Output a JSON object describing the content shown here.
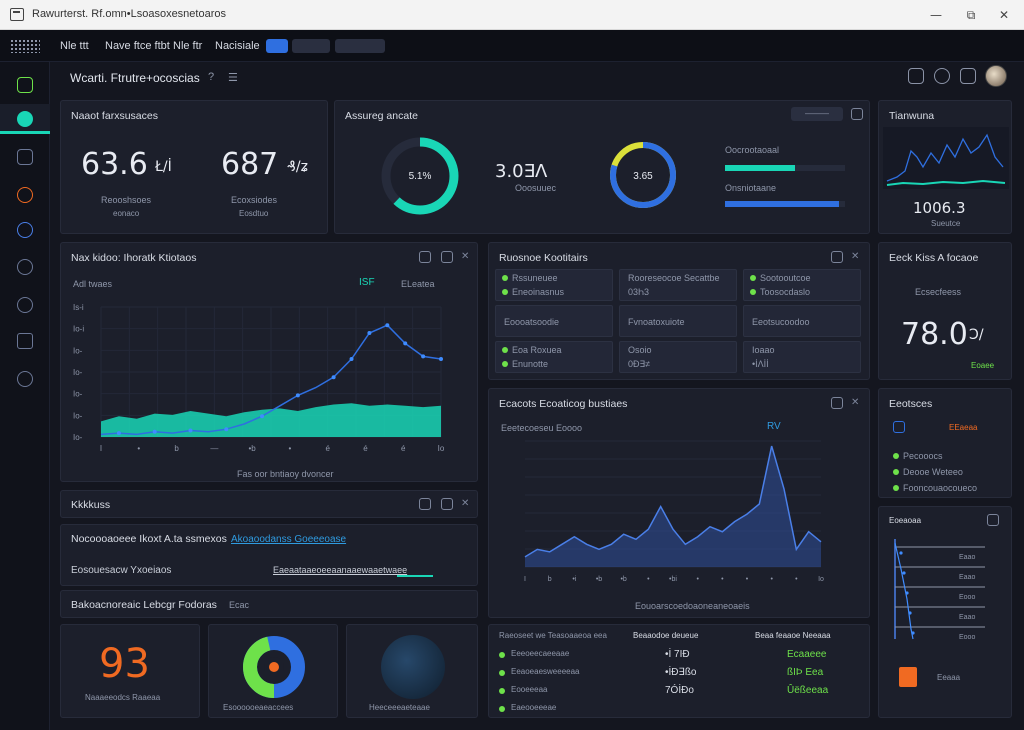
{
  "window": {
    "title": "Rawurterst. Rf.omn•Lsoasoxesnetoaros",
    "minimize": "—",
    "maximize": "⧉",
    "close": "✕"
  },
  "appbar": {
    "links": [
      "Nle ttt",
      "Nave ftce ftbt",
      "Nle ftr",
      "Nacisiale"
    ]
  },
  "header": {
    "title": "Wcarti. Ftrutre+ocoscias",
    "help": "?",
    "menu": "☰"
  },
  "sidebar": {
    "items": [
      "overview",
      "dashboard",
      "monitor",
      "alerts",
      "network",
      "users",
      "settings",
      "reports",
      "support"
    ]
  },
  "colors": {
    "accent": "#19d6b6",
    "blue": "#2f6fe0",
    "green": "#6ee14a",
    "orange": "#f06a22",
    "bg": "#14161f",
    "card": "#1c1f2b"
  },
  "kpi_card": {
    "title": "Naaot farxsusaces",
    "items": [
      {
        "value": "63.6",
        "unit": "Ł/İ",
        "label": "Reooshsoes",
        "sub": "eonaco"
      },
      {
        "value": "687",
        "unit": "₰/ʑ",
        "label": "Ecoxsiodes",
        "sub": "Eosdtuo"
      }
    ]
  },
  "gauge_card": {
    "title": "Assureg ancate",
    "button": "———",
    "gauge1": {
      "label": "5.1%",
      "value": 0.62
    },
    "stat": {
      "value": "3.0∃Ʌ",
      "sub": "Ooosuuec"
    },
    "gauge2": {
      "label": "3.65",
      "value": 0.8
    },
    "bars": [
      {
        "label": "Oocrootaoaal",
        "value": 0.58
      },
      {
        "label": "Onsniotaane",
        "value": 0.95
      }
    ]
  },
  "spark_card": {
    "title": "Tianwuna",
    "value": "1006.3",
    "sub": "Sueutce"
  },
  "main_chart": {
    "title": "Nax kidoo: Ihoratk Ktiotaos",
    "legend_label": "Adl twaes",
    "badge": "ISF",
    "controls": "ELeatea",
    "ylabels": [
      "Is-i",
      "Io-i",
      "Io-",
      "Io-",
      "Io-",
      "Io-",
      "Io-"
    ],
    "xlabels": [
      "I",
      "•",
      "b",
      "—",
      "•b",
      "•",
      "é",
      "é",
      "é",
      "Io"
    ],
    "caption": "Fas oor bntiaoy dvoncer"
  },
  "chart_data": [
    {
      "type": "area",
      "title": "Nax kidoo: Ihoratk Ktiotaos",
      "xlabel": "Fas oor bntiaoy dvoncer",
      "ylabel": "",
      "x": [
        0,
        1,
        2,
        3,
        4,
        5,
        6,
        7,
        8,
        9,
        10,
        11,
        12,
        13,
        14,
        15,
        16,
        17,
        18,
        19
      ],
      "series": [
        {
          "values": [
            12,
            16,
            14,
            18,
            17,
            20,
            18,
            16,
            19,
            21,
            22,
            20,
            23,
            25,
            26,
            24,
            25,
            24,
            23,
            24
          ]
        },
        {
          "values": [
            2,
            3,
            2,
            4,
            3,
            5,
            4,
            6,
            10,
            16,
            24,
            32,
            38,
            46,
            60,
            80,
            86,
            72,
            62,
            60
          ]
        }
      ],
      "ylim": [
        0,
        100
      ]
    },
    {
      "type": "area",
      "title": "Ecacots Ecoaticog bustiaes",
      "xlabel": "",
      "ylabel": "",
      "x": [
        0,
        1,
        2,
        3,
        4,
        5,
        6,
        7,
        8,
        9,
        10,
        11,
        12,
        13,
        14,
        15,
        16,
        17,
        18,
        19,
        20,
        21,
        22,
        23,
        24
      ],
      "series": [
        {
          "values": [
            8,
            14,
            12,
            18,
            24,
            18,
            14,
            18,
            26,
            22,
            30,
            48,
            30,
            18,
            24,
            32,
            28,
            36,
            42,
            50,
            96,
            62,
            14,
            28,
            20
          ]
        }
      ],
      "ylim": [
        0,
        100
      ]
    }
  ],
  "status_card": {
    "title": "Ruosnoe Kootitairs",
    "cells": [
      {
        "lines": [
          "Rssuneuee",
          "Eneoinasnus"
        ],
        "dots": true
      },
      {
        "lines": [
          "Rooreseocoe Secattbe",
          "03Һ3"
        ],
        "dots": false
      },
      {
        "lines": [
          "Sootooutcoe",
          "Toosocdaslo"
        ],
        "dots": true
      },
      {
        "lines": [
          "Eoooatsoodie"
        ],
        "dots": false
      },
      {
        "lines": [
          "Fvnoatoxuiote"
        ],
        "dots": false
      },
      {
        "lines": [
          "Eeotsucoodoo"
        ],
        "dots": false
      },
      {
        "lines": [
          "Eoa Roxuea",
          "Enunotte"
        ],
        "dots": true
      },
      {
        "lines": [
          "Osoio",
          "0Ɖ∃≠"
        ],
        "dots": false
      },
      {
        "lines": [
          "Ioaao",
          "•İɅİİ"
        ],
        "dots": false
      }
    ]
  },
  "bigpct_card": {
    "title": "Eeck Kiss A focaoe",
    "sub": "Ecsecfeess",
    "value": "78.0",
    "unit": "Ↄ/",
    "badge": "Eoaee"
  },
  "area_chart": {
    "title": "Ecacots Ecoaticog bustiaes",
    "legend_label": "Eeetecoeseu Eoooo",
    "badge": "RV",
    "xlabels": [
      "I",
      "b",
      "•i",
      "•b",
      "•b",
      "•",
      "•bi",
      "•",
      "•",
      "•",
      "•",
      "•",
      "Io"
    ],
    "caption": "Eouoarscoedoaoneaneoaeis"
  },
  "legend_card": {
    "title": "Eeotsces",
    "items": [
      "Pecooocs",
      "Deooe Weteeo",
      "Fooncouaocoueco"
    ],
    "badge": "EEaeaa"
  },
  "list_rows": [
    {
      "title": "Kkkkuss"
    },
    {
      "title": "Nocoooaoeee Ikoxt A.ta ssmexos",
      "link": "Akoaoodanss Goeeeoase"
    },
    {
      "title": "Eosouesacw Yxoeiaos",
      "link": "Eaeaataaeoeeaanaaewaaetwaee"
    },
    {
      "title": "Bakoacnoreaic Lebcgr Fodoras",
      "badge": "Ecac"
    }
  ],
  "tiles": {
    "number": "93",
    "caption": "Naaaeeodcs Raaeaa",
    "donut_caption": "Esoooooeaeaccees",
    "globe_caption": "Heeceeeaeteaae"
  },
  "table_card": {
    "headers": [
      "Raeoseet we Teasoaaeoa eea",
      "Beaaodoe deueue",
      "Beaa feaaoe Neeaaa"
    ],
    "rows": [
      {
        "label": "Eeeoeecaeeaae",
        "mid": "•İ 7IƉ",
        "right": "Ecaaeee"
      },
      {
        "label": "Eeaoeaesweeeeaa",
        "mid": "•İƉ∃ßo",
        "right": "ßIÞ Eea"
      },
      {
        "label": "Eooeeeaa",
        "mid": "7ÓİƉo",
        "right": "Ûëßeeaa"
      },
      {
        "label": "Eaeooeeeae",
        "mid": "",
        "right": ""
      }
    ]
  },
  "funnel_card": {
    "title": "Eoeaoaa",
    "labels": [
      "Eaao",
      "Eaao",
      "Eooo",
      "Eaao",
      "Eooo"
    ],
    "badge": "Eeaaa"
  }
}
